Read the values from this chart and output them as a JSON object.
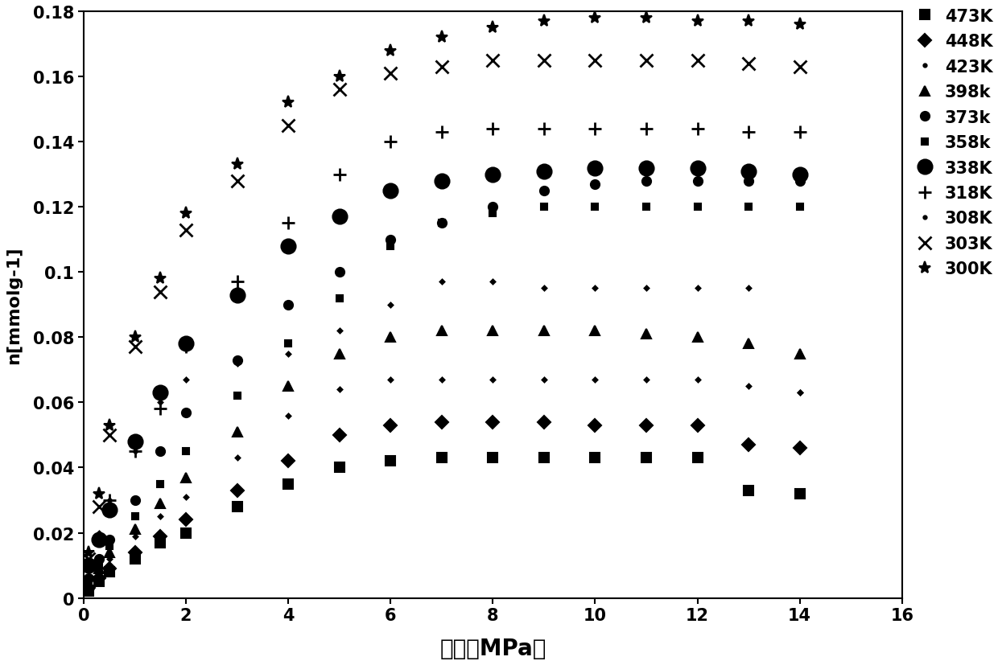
{
  "title": "",
  "xlabel": "压力（MPa）",
  "ylabel": "n[mmolg-1]",
  "xlim": [
    0,
    16
  ],
  "ylim": [
    0,
    0.18
  ],
  "xticks": [
    0,
    2,
    4,
    6,
    8,
    10,
    12,
    14,
    16
  ],
  "yticks": [
    0,
    0.02,
    0.04,
    0.06,
    0.08,
    0.1,
    0.12,
    0.14,
    0.16,
    0.18
  ],
  "series": [
    {
      "label": "473K",
      "marker": "s",
      "markersize": 8,
      "markerfacecolor": "black",
      "x": [
        0.1,
        0.3,
        0.5,
        1.0,
        1.5,
        2.0,
        3.0,
        4.0,
        5.0,
        6.0,
        7.0,
        8.0,
        9.0,
        10.0,
        11.0,
        12.0,
        13.0,
        14.0
      ],
      "y": [
        0.002,
        0.005,
        0.008,
        0.012,
        0.017,
        0.02,
        0.028,
        0.035,
        0.04,
        0.042,
        0.043,
        0.043,
        0.043,
        0.043,
        0.043,
        0.043,
        0.033,
        0.032
      ]
    },
    {
      "label": "448K",
      "marker": "D",
      "markersize": 8,
      "markerfacecolor": "black",
      "x": [
        0.1,
        0.3,
        0.5,
        1.0,
        1.5,
        2.0,
        3.0,
        4.0,
        5.0,
        6.0,
        7.0,
        8.0,
        9.0,
        10.0,
        11.0,
        12.0,
        13.0,
        14.0
      ],
      "y": [
        0.003,
        0.006,
        0.009,
        0.014,
        0.019,
        0.024,
        0.033,
        0.042,
        0.05,
        0.053,
        0.054,
        0.054,
        0.054,
        0.053,
        0.053,
        0.053,
        0.047,
        0.046
      ]
    },
    {
      "label": "423K",
      "marker": "D",
      "markersize": 3,
      "markerfacecolor": "black",
      "x": [
        0.1,
        0.3,
        0.5,
        1.0,
        1.5,
        2.0,
        3.0,
        4.0,
        5.0,
        6.0,
        7.0,
        8.0,
        9.0,
        10.0,
        11.0,
        12.0,
        13.0,
        14.0
      ],
      "y": [
        0.003,
        0.007,
        0.012,
        0.019,
        0.025,
        0.031,
        0.043,
        0.056,
        0.064,
        0.067,
        0.067,
        0.067,
        0.067,
        0.067,
        0.067,
        0.067,
        0.065,
        0.063
      ]
    },
    {
      "label": "398k",
      "marker": "^",
      "markersize": 8,
      "markerfacecolor": "black",
      "x": [
        0.1,
        0.3,
        0.5,
        1.0,
        1.5,
        2.0,
        3.0,
        4.0,
        5.0,
        6.0,
        7.0,
        8.0,
        9.0,
        10.0,
        11.0,
        12.0,
        13.0,
        14.0
      ],
      "y": [
        0.004,
        0.009,
        0.014,
        0.021,
        0.029,
        0.037,
        0.051,
        0.065,
        0.075,
        0.08,
        0.082,
        0.082,
        0.082,
        0.082,
        0.081,
        0.08,
        0.078,
        0.075
      ]
    },
    {
      "label": "373k",
      "marker": "o",
      "markersize": 8,
      "markerfacecolor": "black",
      "x": [
        0.1,
        0.3,
        0.5,
        1.0,
        1.5,
        2.0,
        3.0,
        4.0,
        5.0,
        6.0,
        7.0,
        8.0,
        9.0,
        10.0,
        11.0,
        12.0,
        13.0,
        14.0
      ],
      "y": [
        0.006,
        0.012,
        0.018,
        0.03,
        0.045,
        0.057,
        0.073,
        0.09,
        0.1,
        0.11,
        0.115,
        0.12,
        0.125,
        0.127,
        0.128,
        0.128,
        0.128,
        0.128
      ]
    },
    {
      "label": "358k",
      "marker": "s",
      "markersize": 6,
      "markerfacecolor": "black",
      "x": [
        0.1,
        0.3,
        0.5,
        1.0,
        1.5,
        2.0,
        3.0,
        4.0,
        5.0,
        6.0,
        7.0,
        8.0,
        9.0,
        10.0,
        11.0,
        12.0,
        13.0,
        14.0
      ],
      "y": [
        0.005,
        0.01,
        0.016,
        0.025,
        0.035,
        0.045,
        0.062,
        0.078,
        0.092,
        0.108,
        0.115,
        0.118,
        0.12,
        0.12,
        0.12,
        0.12,
        0.12,
        0.12
      ]
    },
    {
      "label": "338K",
      "marker": "o",
      "markersize": 13,
      "markerfacecolor": "black",
      "x": [
        0.1,
        0.3,
        0.5,
        1.0,
        1.5,
        2.0,
        3.0,
        4.0,
        5.0,
        6.0,
        7.0,
        8.0,
        9.0,
        10.0,
        11.0,
        12.0,
        13.0,
        14.0
      ],
      "y": [
        0.01,
        0.018,
        0.027,
        0.048,
        0.063,
        0.078,
        0.093,
        0.108,
        0.117,
        0.125,
        0.128,
        0.13,
        0.131,
        0.132,
        0.132,
        0.132,
        0.131,
        0.13
      ]
    },
    {
      "label": "318K",
      "marker": "+",
      "markersize": 11,
      "markerfacecolor": "none",
      "x": [
        0.1,
        0.3,
        0.5,
        1.0,
        1.5,
        2.0,
        3.0,
        4.0,
        5.0,
        6.0,
        7.0,
        8.0,
        9.0,
        10.0,
        11.0,
        12.0,
        13.0,
        14.0
      ],
      "y": [
        0.009,
        0.018,
        0.03,
        0.045,
        0.058,
        0.077,
        0.097,
        0.115,
        0.13,
        0.14,
        0.143,
        0.144,
        0.144,
        0.144,
        0.144,
        0.144,
        0.143,
        0.143
      ]
    },
    {
      "label": "308K",
      "marker": "D",
      "markersize": 3,
      "markerfacecolor": "black",
      "x": [
        0.1,
        0.3,
        0.5,
        1.0,
        1.5,
        2.0,
        3.0,
        4.0,
        5.0,
        6.0,
        7.0,
        8.0,
        9.0,
        10.0,
        11.0,
        12.0,
        13.0,
        14.0
      ],
      "y": [
        0.009,
        0.02,
        0.03,
        0.045,
        0.06,
        0.067,
        0.072,
        0.075,
        0.082,
        0.09,
        0.097,
        0.097,
        0.095,
        0.095,
        0.095,
        0.095,
        0.095,
        0.063
      ]
    },
    {
      "label": "303K",
      "marker": "x",
      "markersize": 11,
      "markerfacecolor": "none",
      "x": [
        0.1,
        0.3,
        0.5,
        1.0,
        1.5,
        2.0,
        3.0,
        4.0,
        5.0,
        6.0,
        7.0,
        8.0,
        9.0,
        10.0,
        11.0,
        12.0,
        13.0,
        14.0
      ],
      "y": [
        0.012,
        0.028,
        0.05,
        0.077,
        0.094,
        0.113,
        0.128,
        0.145,
        0.156,
        0.161,
        0.163,
        0.165,
        0.165,
        0.165,
        0.165,
        0.165,
        0.164,
        0.163
      ]
    },
    {
      "label": "300K",
      "marker": "*",
      "markersize": 11,
      "markerfacecolor": "black",
      "x": [
        0.1,
        0.3,
        0.5,
        1.0,
        1.5,
        2.0,
        3.0,
        4.0,
        5.0,
        6.0,
        7.0,
        8.0,
        9.0,
        10.0,
        11.0,
        12.0,
        13.0,
        14.0
      ],
      "y": [
        0.014,
        0.032,
        0.053,
        0.08,
        0.098,
        0.118,
        0.133,
        0.152,
        0.16,
        0.168,
        0.172,
        0.175,
        0.177,
        0.178,
        0.178,
        0.177,
        0.177,
        0.176
      ]
    }
  ],
  "legend_entries": [
    {
      "label": "473K",
      "marker": "s",
      "ms": 8,
      "filled": true,
      "mew": 1.5
    },
    {
      "label": "448K",
      "marker": "D",
      "ms": 8,
      "filled": true,
      "mew": 1.5
    },
    {
      "label": "423K",
      "marker": ".",
      "ms": 6,
      "filled": true,
      "mew": 1.5
    },
    {
      "label": "398k",
      "marker": "^",
      "ms": 8,
      "filled": true,
      "mew": 1.5
    },
    {
      "label": "373k",
      "marker": "o",
      "ms": 8,
      "filled": true,
      "mew": 1.5
    },
    {
      "label": "358k",
      "marker": "s",
      "ms": 6,
      "filled": true,
      "mew": 1.5
    },
    {
      "label": "338K",
      "marker": "o",
      "ms": 13,
      "filled": true,
      "mew": 1.5
    },
    {
      "label": "318K",
      "marker": "+",
      "ms": 11,
      "filled": false,
      "mew": 2.0
    },
    {
      "label": "308K",
      "marker": ".",
      "ms": 6,
      "filled": true,
      "mew": 1.5
    },
    {
      "label": "303K",
      "marker": "x",
      "ms": 11,
      "filled": false,
      "mew": 2.0
    },
    {
      "label": "300K",
      "marker": "*",
      "ms": 11,
      "filled": true,
      "mew": 1.5
    }
  ],
  "background_color": "#ffffff"
}
